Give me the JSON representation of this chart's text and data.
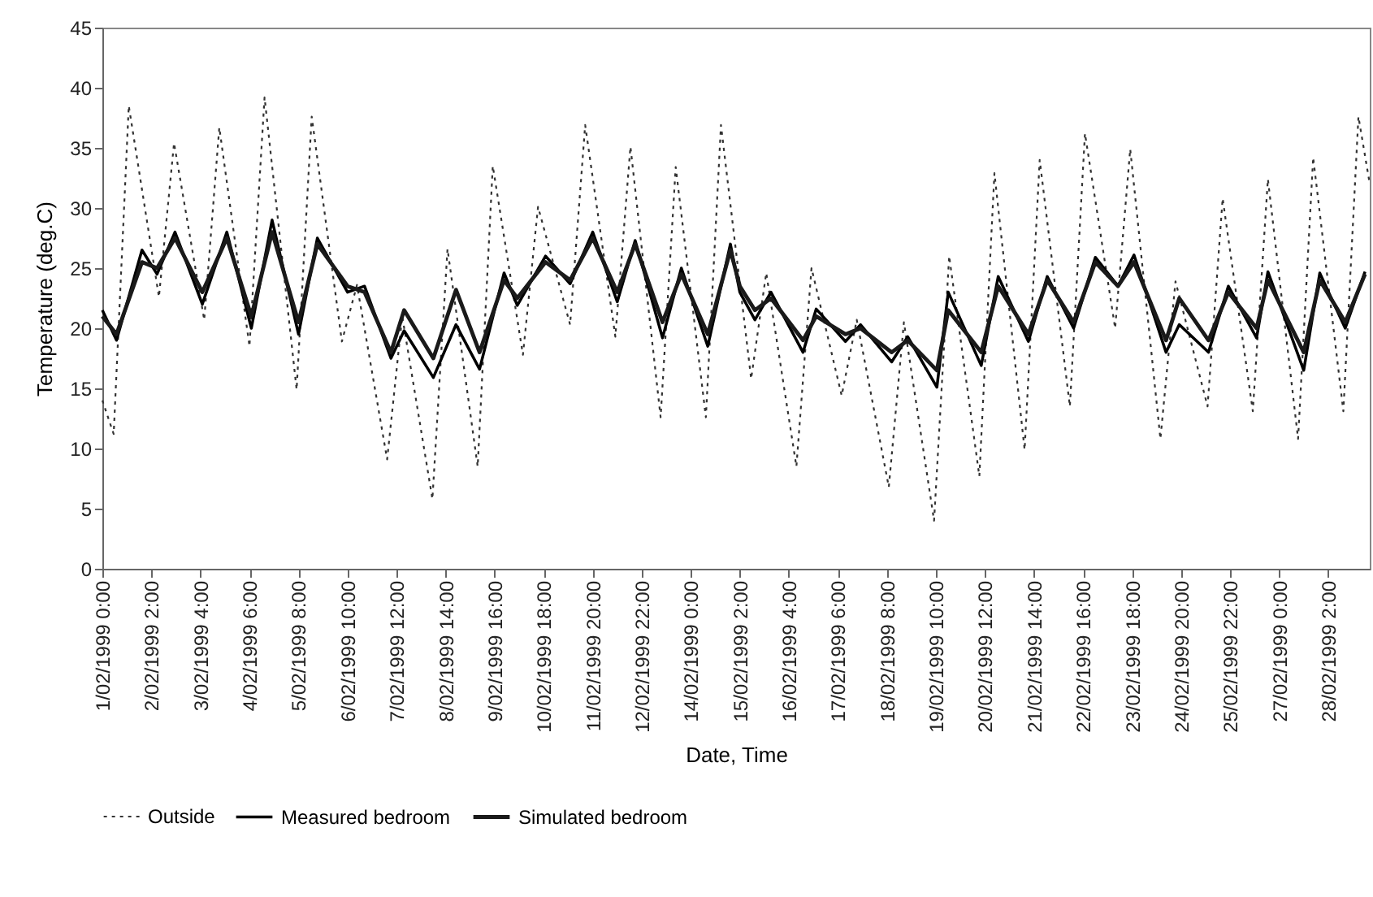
{
  "chart_data": {
    "type": "line",
    "xlabel": "Date, Time",
    "ylabel": "Temperature (deg.C)",
    "xlim": [
      "1999-02-01T00:00",
      "1999-03-01T00:00"
    ],
    "ylim": [
      0,
      45
    ],
    "yticks": [
      0,
      5,
      10,
      15,
      20,
      25,
      30,
      35,
      40,
      45
    ],
    "xticks": [
      {
        "value": "1999-02-01T00:00",
        "label": "1/02/1999 0:00"
      },
      {
        "value": "1999-02-02T02:00",
        "label": "2/02/1999 2:00"
      },
      {
        "value": "1999-02-03T04:00",
        "label": "3/02/1999 4:00"
      },
      {
        "value": "1999-02-04T06:00",
        "label": "4/02/1999 6:00"
      },
      {
        "value": "1999-02-05T08:00",
        "label": "5/02/1999 8:00"
      },
      {
        "value": "1999-02-06T10:00",
        "label": "6/02/1999 10:00"
      },
      {
        "value": "1999-02-07T12:00",
        "label": "7/02/1999 12:00"
      },
      {
        "value": "1999-02-08T14:00",
        "label": "8/02/1999 14:00"
      },
      {
        "value": "1999-02-09T16:00",
        "label": "9/02/1999 16:00"
      },
      {
        "value": "1999-02-10T18:00",
        "label": "10/02/1999 18:00"
      },
      {
        "value": "1999-02-11T20:00",
        "label": "11/02/1999 20:00"
      },
      {
        "value": "1999-02-12T22:00",
        "label": "12/02/1999 22:00"
      },
      {
        "value": "1999-02-14T00:00",
        "label": "14/02/1999 0:00"
      },
      {
        "value": "1999-02-15T02:00",
        "label": "15/02/1999 2:00"
      },
      {
        "value": "1999-02-16T04:00",
        "label": "16/02/1999 4:00"
      },
      {
        "value": "1999-02-17T06:00",
        "label": "17/02/1999 6:00"
      },
      {
        "value": "1999-02-18T08:00",
        "label": "18/02/1999 8:00"
      },
      {
        "value": "1999-02-19T10:00",
        "label": "19/02/1999 10:00"
      },
      {
        "value": "1999-02-20T12:00",
        "label": "20/02/1999 12:00"
      },
      {
        "value": "1999-02-21T14:00",
        "label": "21/02/1999 14:00"
      },
      {
        "value": "1999-02-22T16:00",
        "label": "22/02/1999 16:00"
      },
      {
        "value": "1999-02-23T18:00",
        "label": "23/02/1999 18:00"
      },
      {
        "value": "1999-02-24T20:00",
        "label": "24/02/1999 20:00"
      },
      {
        "value": "1999-02-25T22:00",
        "label": "25/02/1999 22:00"
      },
      {
        "value": "1999-02-27T00:00",
        "label": "27/02/1999 0:00"
      },
      {
        "value": "1999-02-28T02:00",
        "label": "28/02/1999 2:00"
      }
    ],
    "grid": false,
    "legend": "bottom",
    "marker": "none",
    "series": [
      {
        "name": "Outside",
        "color": "#333333",
        "line_style": "dotted",
        "x": [
          "1999-02-01T00:00",
          "1999-02-01T06:00",
          "1999-02-01T14:00",
          "1999-02-02T06:00",
          "1999-02-02T14:00",
          "1999-02-03T06:00",
          "1999-02-03T14:00",
          "1999-02-04T06:00",
          "1999-02-04T14:00",
          "1999-02-05T07:00",
          "1999-02-05T15:00",
          "1999-02-06T07:00",
          "1999-02-06T15:00",
          "1999-02-07T07:00",
          "1999-02-07T15:00",
          "1999-02-08T07:00",
          "1999-02-08T15:00",
          "1999-02-09T07:00",
          "1999-02-09T15:00",
          "1999-02-10T07:00",
          "1999-02-10T15:00",
          "1999-02-11T08:00",
          "1999-02-11T16:00",
          "1999-02-12T08:00",
          "1999-02-12T16:00",
          "1999-02-13T08:00",
          "1999-02-13T16:00",
          "1999-02-14T08:00",
          "1999-02-14T16:00",
          "1999-02-15T08:00",
          "1999-02-15T16:00",
          "1999-02-16T08:00",
          "1999-02-16T16:00",
          "1999-02-17T08:00",
          "1999-02-17T16:00",
          "1999-02-18T09:00",
          "1999-02-18T17:00",
          "1999-02-19T09:00",
          "1999-02-19T17:00",
          "1999-02-20T09:00",
          "1999-02-20T17:00",
          "1999-02-21T09:00",
          "1999-02-21T17:00",
          "1999-02-22T09:00",
          "1999-02-22T17:00",
          "1999-02-23T09:00",
          "1999-02-23T17:00",
          "1999-02-24T09:00",
          "1999-02-24T17:00",
          "1999-02-25T10:00",
          "1999-02-25T18:00",
          "1999-02-26T10:00",
          "1999-02-26T18:00",
          "1999-02-27T10:00",
          "1999-02-27T18:00",
          "1999-02-28T10:00",
          "1999-02-28T18:00",
          "1999-03-01T00:00"
        ],
        "values": [
          14,
          11.2,
          38.5,
          22.6,
          35.4,
          20.7,
          36.7,
          18.5,
          39.2,
          14.9,
          37.6,
          18.9,
          23.6,
          9.1,
          21,
          5.8,
          26.6,
          8.5,
          33.5,
          17.8,
          30.1,
          20.3,
          36.9,
          19.3,
          35.1,
          12.6,
          33.4,
          12.6,
          36.9,
          15.8,
          24.6,
          8.5,
          25,
          14.4,
          20.7,
          6.8,
          20.5,
          4,
          26,
          7.7,
          32.9,
          9.9,
          34,
          13.5,
          36.2,
          20,
          34.9,
          10.8,
          23.9,
          13.5,
          30.8,
          13.1,
          32.4,
          10.8,
          34.2,
          13.1,
          37.6,
          32
        ]
      },
      {
        "name": "Measured bedroom",
        "color": "#000000",
        "line_style": "solid",
        "x": [
          "1999-02-01T00:00",
          "1999-02-01T07:30",
          "1999-02-01T21:00",
          "1999-02-02T05:00",
          "1999-02-02T14:30",
          "1999-02-03T05:00",
          "1999-02-03T18:00",
          "1999-02-04T07:00",
          "1999-02-04T18:00",
          "1999-02-05T08:00",
          "1999-02-05T18:00",
          "1999-02-06T10:00",
          "1999-02-06T19:00",
          "1999-02-07T09:00",
          "1999-02-07T16:00",
          "1999-02-08T07:30",
          "1999-02-08T19:30",
          "1999-02-09T08:00",
          "1999-02-09T21:00",
          "1999-02-10T04:00",
          "1999-02-10T19:00",
          "1999-02-11T08:00",
          "1999-02-11T20:00",
          "1999-02-12T09:00",
          "1999-02-12T18:30",
          "1999-02-13T09:00",
          "1999-02-13T19:00",
          "1999-02-14T09:00",
          "1999-02-14T21:00",
          "1999-02-15T02:00",
          "1999-02-15T10:00",
          "1999-02-15T18:30",
          "1999-02-16T11:30",
          "1999-02-16T18:30",
          "1999-02-17T10:00",
          "1999-02-17T18:00",
          "1999-02-18T10:30",
          "1999-02-18T19:00",
          "1999-02-19T10:30",
          "1999-02-19T16:30",
          "1999-02-20T10:00",
          "1999-02-20T19:00",
          "1999-02-21T11:00",
          "1999-02-21T21:00",
          "1999-02-22T11:00",
          "1999-02-22T22:30",
          "1999-02-23T10:30",
          "1999-02-23T19:00",
          "1999-02-24T12:00",
          "1999-02-24T19:00",
          "1999-02-25T10:30",
          "1999-02-25T21:00",
          "1999-02-26T12:00",
          "1999-02-26T18:00",
          "1999-02-27T13:00",
          "1999-02-27T21:30",
          "1999-02-28T11:00",
          "1999-02-28T21:30"
        ],
        "values": [
          21.5,
          19,
          26.5,
          24.5,
          28,
          22,
          28,
          20,
          29,
          19.5,
          27.5,
          23,
          23.5,
          17.5,
          19.8,
          15.9,
          20.3,
          16.6,
          24.6,
          21.9,
          26,
          23.7,
          28,
          22.2,
          27.3,
          19.2,
          25,
          18.5,
          27,
          23,
          20.7,
          23,
          18,
          21.6,
          18.9,
          20.3,
          17.2,
          19.3,
          15.1,
          23,
          16.9,
          24.3,
          18.9,
          24.3,
          20,
          25.9,
          23.5,
          26.1,
          18,
          20.3,
          18,
          23.5,
          19.2,
          24.7,
          16.5,
          24.6,
          20,
          24.7
        ]
      },
      {
        "name": "Simulated bedroom",
        "color": "#1a1a1a",
        "line_style": "solid",
        "x": [
          "1999-02-01T00:00",
          "1999-02-01T07:30",
          "1999-02-01T21:00",
          "1999-02-02T05:00",
          "1999-02-02T14:30",
          "1999-02-03T05:00",
          "1999-02-03T18:00",
          "1999-02-04T07:00",
          "1999-02-04T18:00",
          "1999-02-05T08:00",
          "1999-02-05T18:00",
          "1999-02-06T10:00",
          "1999-02-06T19:00",
          "1999-02-07T09:00",
          "1999-02-07T16:00",
          "1999-02-08T07:30",
          "1999-02-08T19:30",
          "1999-02-09T08:00",
          "1999-02-09T21:00",
          "1999-02-10T04:00",
          "1999-02-10T19:00",
          "1999-02-11T08:00",
          "1999-02-11T20:00",
          "1999-02-12T09:00",
          "1999-02-12T18:30",
          "1999-02-13T09:00",
          "1999-02-13T19:00",
          "1999-02-14T09:00",
          "1999-02-14T21:00",
          "1999-02-15T02:00",
          "1999-02-15T10:00",
          "1999-02-15T18:30",
          "1999-02-16T11:30",
          "1999-02-16T18:30",
          "1999-02-17T10:00",
          "1999-02-17T18:00",
          "1999-02-18T10:30",
          "1999-02-18T19:00",
          "1999-02-19T10:30",
          "1999-02-19T16:30",
          "1999-02-20T10:00",
          "1999-02-20T19:00",
          "1999-02-21T11:00",
          "1999-02-21T21:00",
          "1999-02-22T11:00",
          "1999-02-22T22:30",
          "1999-02-23T10:30",
          "1999-02-23T19:00",
          "1999-02-24T12:00",
          "1999-02-24T19:00",
          "1999-02-25T10:30",
          "1999-02-25T21:00",
          "1999-02-26T12:00",
          "1999-02-26T18:00",
          "1999-02-27T13:00",
          "1999-02-27T21:30",
          "1999-02-28T11:00",
          "1999-02-28T21:30"
        ],
        "values": [
          21,
          19.5,
          25.5,
          25,
          27.5,
          23,
          27.5,
          21,
          28,
          20.5,
          27,
          23.5,
          23,
          18,
          21.5,
          17.5,
          23.2,
          18,
          24,
          22.5,
          25.5,
          24,
          27.5,
          23,
          27,
          20.5,
          24.5,
          19.5,
          26.5,
          23.5,
          21.5,
          22.5,
          19,
          21,
          19.5,
          20,
          18,
          19,
          16.5,
          21.5,
          18,
          23.5,
          19.5,
          24,
          20.5,
          25.5,
          23.5,
          25.5,
          19,
          22.5,
          19,
          23,
          20,
          24,
          18,
          24,
          20.5,
          24.5
        ]
      }
    ]
  }
}
